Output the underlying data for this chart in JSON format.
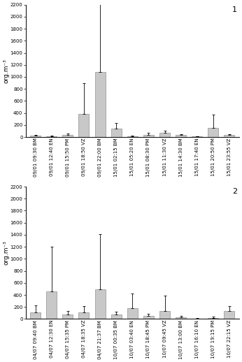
{
  "plot1": {
    "labels": [
      "09/01 09:30 BM",
      "09/01 12:40 EN",
      "09/01 15:50 PM",
      "09/01 18:50 VZ",
      "09/01 22:00 BM",
      "15/01 02:15 BM",
      "15/01 05:20 EN",
      "15/01 08:30 PM",
      "15/01 11:30 VZ",
      "15/01 14:30 BM",
      "15/01 17:40 EN",
      "15/01 20:50 PM",
      "15/01 23:55 VZ"
    ],
    "values": [
      20,
      15,
      40,
      380,
      1080,
      145,
      15,
      35,
      65,
      30,
      10,
      150,
      30
    ],
    "errors": [
      15,
      10,
      20,
      520,
      1150,
      90,
      10,
      30,
      40,
      20,
      8,
      220,
      20
    ],
    "label": "1"
  },
  "plot2": {
    "labels": [
      "04/07 09:40 BM",
      "04/07 12:30 EN",
      "04/07 15:35 PM",
      "04/07 18:35 VZ",
      "04/07 21:37 BM",
      "10/07 00:35 BM",
      "10/07 03:40 EN",
      "10/07 18:45 PM",
      "10/07 09:45 VZ",
      "10/07 13:00 BM",
      "10/07 16:10 EN",
      "10/07 19:15 PM",
      "10/07 22:15 VZ"
    ],
    "values": [
      110,
      460,
      70,
      110,
      490,
      75,
      185,
      50,
      135,
      30,
      10,
      20,
      130
    ],
    "errors": [
      120,
      740,
      60,
      105,
      920,
      50,
      235,
      35,
      250,
      25,
      8,
      15,
      90
    ],
    "label": "2"
  },
  "bar_color": "#c8c8c8",
  "bar_edge_color": "#909090",
  "ylabel": "org.m⁻³",
  "ylim": [
    0,
    2200
  ],
  "yticks": [
    0,
    200,
    400,
    600,
    800,
    1000,
    1200,
    1400,
    1600,
    1800,
    2000,
    2200
  ],
  "tick_fontsize": 5.0,
  "ylabel_fontsize": 6.5,
  "label_fontsize": 8,
  "bar_width": 0.65
}
